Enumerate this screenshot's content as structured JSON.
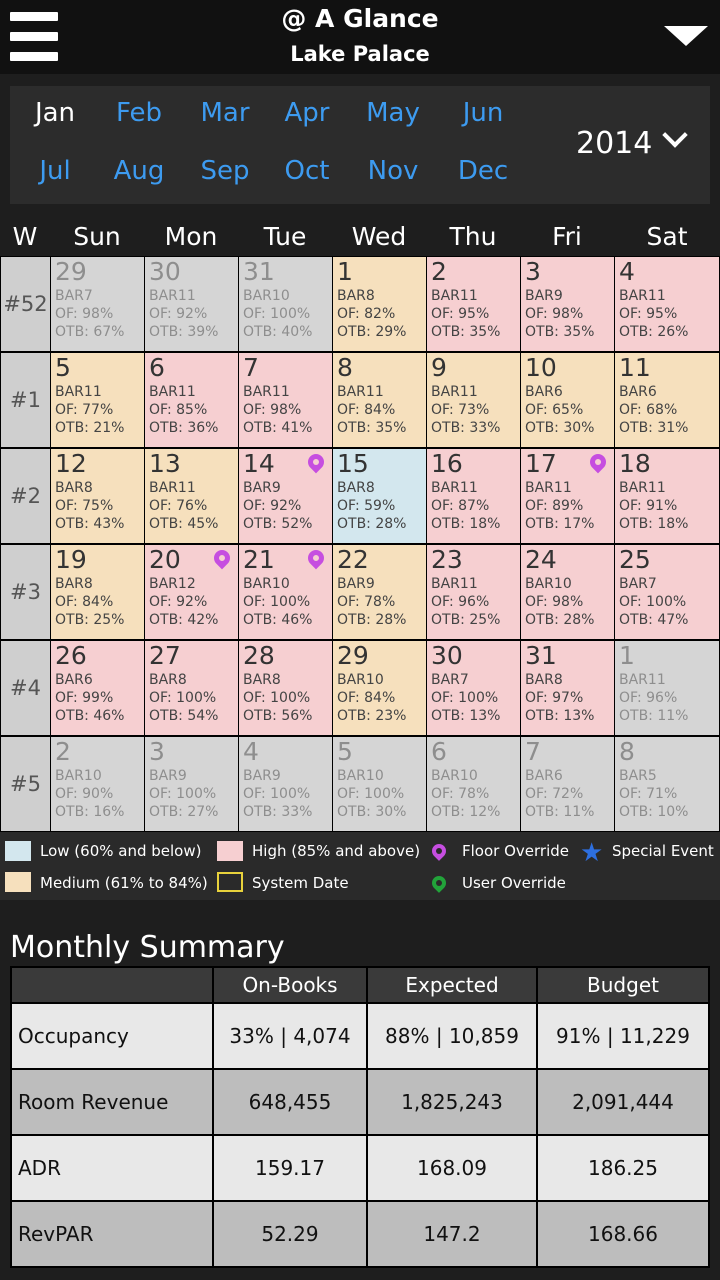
{
  "header": {
    "title": "@ A Glance",
    "subtitle": "Lake Palace"
  },
  "months": {
    "row1": [
      "Jan",
      "Feb",
      "Mar",
      "Apr",
      "May",
      "Jun"
    ],
    "row2": [
      "Jul",
      "Aug",
      "Sep",
      "Oct",
      "Nov",
      "Dec"
    ],
    "selected": "Jan",
    "year": "2014"
  },
  "day_headers": [
    "W",
    "Sun",
    "Mon",
    "Tue",
    "Wed",
    "Thu",
    "Fri",
    "Sat"
  ],
  "calendar": [
    {
      "week": "#52",
      "days": [
        {
          "d": "29",
          "bar": "BAR7",
          "of": "OF: 98%",
          "otb": "OTB: 67%",
          "level": "out",
          "pin": false
        },
        {
          "d": "30",
          "bar": "BAR11",
          "of": "OF: 92%",
          "otb": "OTB: 39%",
          "level": "out",
          "pin": false
        },
        {
          "d": "31",
          "bar": "BAR10",
          "of": "OF: 100%",
          "otb": "OTB: 40%",
          "level": "out",
          "pin": false
        },
        {
          "d": "1",
          "bar": "BAR8",
          "of": "OF: 82%",
          "otb": "OTB: 29%",
          "level": "med",
          "pin": false
        },
        {
          "d": "2",
          "bar": "BAR11",
          "of": "OF: 95%",
          "otb": "OTB: 35%",
          "level": "high",
          "pin": false
        },
        {
          "d": "3",
          "bar": "BAR9",
          "of": "OF: 98%",
          "otb": "OTB: 35%",
          "level": "high",
          "pin": false
        },
        {
          "d": "4",
          "bar": "BAR11",
          "of": "OF: 95%",
          "otb": "OTB: 26%",
          "level": "high",
          "pin": false
        }
      ]
    },
    {
      "week": "#1",
      "days": [
        {
          "d": "5",
          "bar": "BAR11",
          "of": "OF: 77%",
          "otb": "OTB: 21%",
          "level": "med",
          "pin": false
        },
        {
          "d": "6",
          "bar": "BAR11",
          "of": "OF: 85%",
          "otb": "OTB: 36%",
          "level": "high",
          "pin": false
        },
        {
          "d": "7",
          "bar": "BAR11",
          "of": "OF: 98%",
          "otb": "OTB: 41%",
          "level": "high",
          "pin": false
        },
        {
          "d": "8",
          "bar": "BAR11",
          "of": "OF: 84%",
          "otb": "OTB: 35%",
          "level": "med",
          "pin": false
        },
        {
          "d": "9",
          "bar": "BAR11",
          "of": "OF: 73%",
          "otb": "OTB: 33%",
          "level": "med",
          "pin": false
        },
        {
          "d": "10",
          "bar": "BAR6",
          "of": "OF: 65%",
          "otb": "OTB: 30%",
          "level": "med",
          "pin": false
        },
        {
          "d": "11",
          "bar": "BAR6",
          "of": "OF: 68%",
          "otb": "OTB: 31%",
          "level": "med",
          "pin": false
        }
      ]
    },
    {
      "week": "#2",
      "days": [
        {
          "d": "12",
          "bar": "BAR8",
          "of": "OF: 75%",
          "otb": "OTB: 43%",
          "level": "med",
          "pin": false
        },
        {
          "d": "13",
          "bar": "BAR11",
          "of": "OF: 76%",
          "otb": "OTB: 45%",
          "level": "med",
          "pin": false
        },
        {
          "d": "14",
          "bar": "BAR9",
          "of": "OF: 92%",
          "otb": "OTB: 52%",
          "level": "high",
          "pin": true
        },
        {
          "d": "15",
          "bar": "BAR8",
          "of": "OF: 59%",
          "otb": "OTB: 28%",
          "level": "low",
          "pin": false
        },
        {
          "d": "16",
          "bar": "BAR11",
          "of": "OF: 87%",
          "otb": "OTB: 18%",
          "level": "high",
          "pin": false
        },
        {
          "d": "17",
          "bar": "BAR11",
          "of": "OF: 89%",
          "otb": "OTB: 17%",
          "level": "high",
          "pin": true
        },
        {
          "d": "18",
          "bar": "BAR11",
          "of": "OF: 91%",
          "otb": "OTB: 18%",
          "level": "high",
          "pin": false
        }
      ]
    },
    {
      "week": "#3",
      "days": [
        {
          "d": "19",
          "bar": "BAR8",
          "of": "OF: 84%",
          "otb": "OTB: 25%",
          "level": "med",
          "pin": false
        },
        {
          "d": "20",
          "bar": "BAR12",
          "of": "OF: 92%",
          "otb": "OTB: 42%",
          "level": "high",
          "pin": true
        },
        {
          "d": "21",
          "bar": "BAR10",
          "of": "OF: 100%",
          "otb": "OTB: 46%",
          "level": "high",
          "pin": true
        },
        {
          "d": "22",
          "bar": "BAR9",
          "of": "OF: 78%",
          "otb": "OTB: 28%",
          "level": "med",
          "pin": false
        },
        {
          "d": "23",
          "bar": "BAR11",
          "of": "OF: 96%",
          "otb": "OTB: 25%",
          "level": "high",
          "pin": false
        },
        {
          "d": "24",
          "bar": "BAR10",
          "of": "OF: 98%",
          "otb": "OTB: 28%",
          "level": "high",
          "pin": false
        },
        {
          "d": "25",
          "bar": "BAR7",
          "of": "OF: 100%",
          "otb": "OTB: 47%",
          "level": "high",
          "pin": false
        }
      ]
    },
    {
      "week": "#4",
      "days": [
        {
          "d": "26",
          "bar": "BAR6",
          "of": "OF: 99%",
          "otb": "OTB: 46%",
          "level": "high",
          "pin": false
        },
        {
          "d": "27",
          "bar": "BAR8",
          "of": "OF: 100%",
          "otb": "OTB: 54%",
          "level": "high",
          "pin": false
        },
        {
          "d": "28",
          "bar": "BAR8",
          "of": "OF: 100%",
          "otb": "OTB: 56%",
          "level": "high",
          "pin": false
        },
        {
          "d": "29",
          "bar": "BAR10",
          "of": "OF: 84%",
          "otb": "OTB: 23%",
          "level": "med",
          "pin": false
        },
        {
          "d": "30",
          "bar": "BAR7",
          "of": "OF: 100%",
          "otb": "OTB: 13%",
          "level": "high",
          "pin": false
        },
        {
          "d": "31",
          "bar": "BAR8",
          "of": "OF: 97%",
          "otb": "OTB: 13%",
          "level": "high",
          "pin": false
        },
        {
          "d": "1",
          "bar": "BAR11",
          "of": "OF: 96%",
          "otb": "OTB: 11%",
          "level": "out",
          "pin": false
        }
      ]
    },
    {
      "week": "#5",
      "days": [
        {
          "d": "2",
          "bar": "BAR10",
          "of": "OF: 90%",
          "otb": "OTB: 16%",
          "level": "out",
          "pin": false
        },
        {
          "d": "3",
          "bar": "BAR9",
          "of": "OF: 100%",
          "otb": "OTB: 27%",
          "level": "out",
          "pin": false
        },
        {
          "d": "4",
          "bar": "BAR9",
          "of": "OF: 100%",
          "otb": "OTB: 33%",
          "level": "out",
          "pin": false
        },
        {
          "d": "5",
          "bar": "BAR10",
          "of": "OF: 100%",
          "otb": "OTB: 30%",
          "level": "out",
          "pin": false
        },
        {
          "d": "6",
          "bar": "BAR10",
          "of": "OF: 78%",
          "otb": "OTB: 12%",
          "level": "out",
          "pin": false
        },
        {
          "d": "7",
          "bar": "BAR6",
          "of": "OF: 72%",
          "otb": "OTB: 11%",
          "level": "out",
          "pin": false
        },
        {
          "d": "8",
          "bar": "BAR5",
          "of": "OF: 71%",
          "otb": "OTB: 10%",
          "level": "out",
          "pin": false
        }
      ]
    }
  ],
  "legend": {
    "low": "Low (60% and below)",
    "high": "High (85% and above)",
    "floor_override": "Floor Override",
    "special_event": "Special Event",
    "medium": "Medium (61% to 84%)",
    "system_date": "System Date",
    "user_override": "User Override",
    "colors": {
      "low": "#d3e7ee",
      "medium": "#f6e0bd",
      "high": "#f6cfd1",
      "floor_override": "#c64ee0",
      "user_override": "#22a33a",
      "special_event": "#2d6fe0",
      "system_date": "#e8d23c"
    }
  },
  "summary": {
    "title": "Monthly Summary",
    "columns": [
      "",
      "On-Books",
      "Expected",
      "Budget"
    ],
    "rows": [
      [
        "Occupancy",
        "33% | 4,074",
        "88% | 10,859",
        "91% | 11,229"
      ],
      [
        "Room Revenue",
        "648,455",
        "1,825,243",
        "2,091,444"
      ],
      [
        "ADR",
        "159.17",
        "168.09",
        "186.25"
      ],
      [
        "RevPAR",
        "52.29",
        "147.2",
        "168.66"
      ]
    ]
  }
}
